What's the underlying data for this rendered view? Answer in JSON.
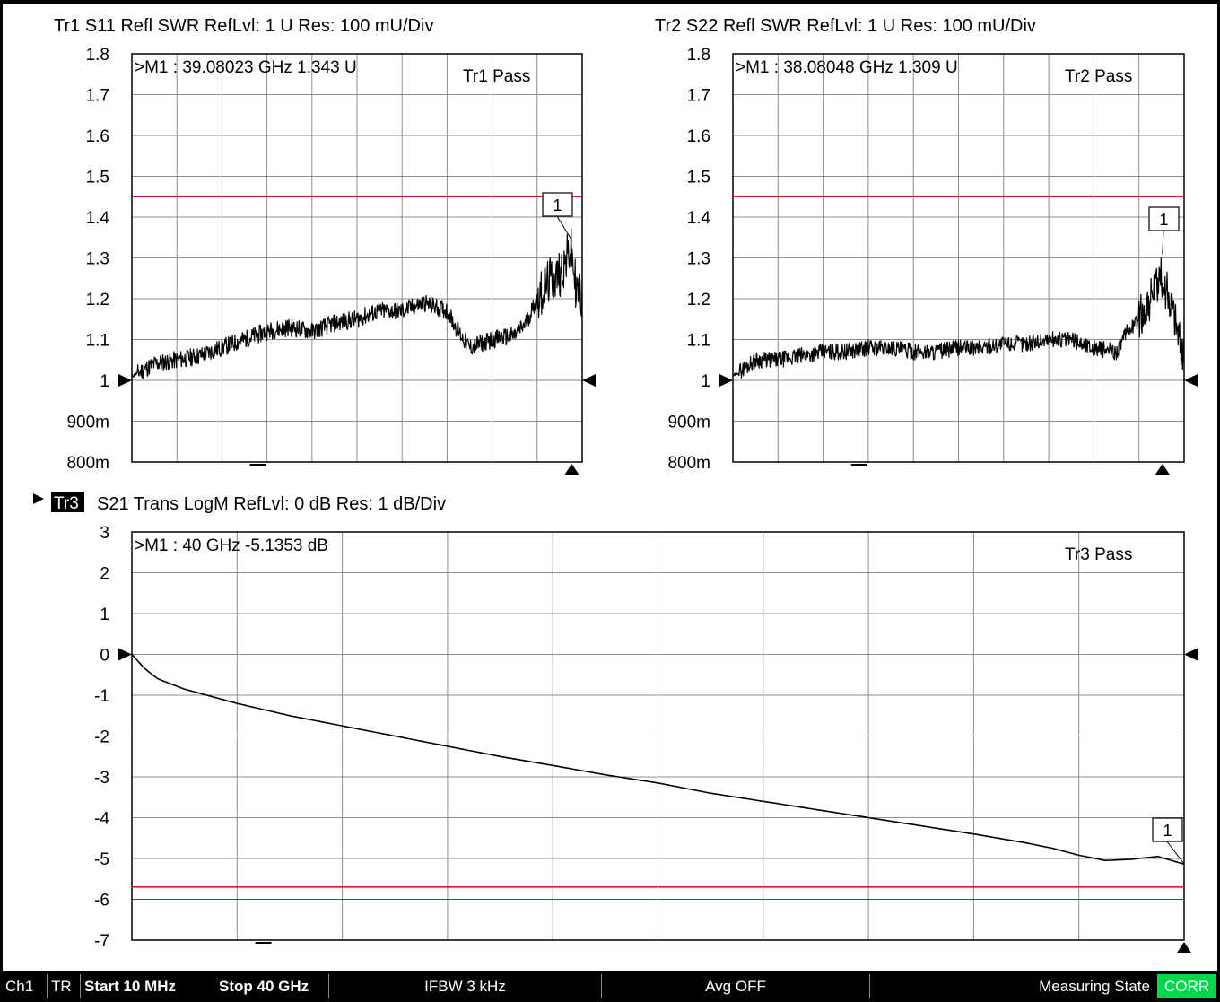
{
  "traces": [
    {
      "id": "Tr1",
      "header": "Tr1  S11 Refl SWR RefLvl: 1  U Res: 100 mU/Div",
      "marker_readout": ">M1 :  39.08023 GHz  1.343  U",
      "pass_label": "Tr1 Pass",
      "marker_label": "1",
      "y_ticks": [
        "1.8",
        "1.7",
        "1.6",
        "1.5",
        "1.4",
        "1.3",
        "1.2",
        "1.1",
        "1",
        "900m",
        "800m"
      ],
      "chart_data": {
        "type": "line",
        "xlim": [
          0.01,
          40
        ],
        "ylim": [
          0.8,
          1.8
        ],
        "limit_line": 1.45,
        "ref_level": 1,
        "marker": {
          "x": 39.08023,
          "y": 1.343
        },
        "series": [
          {
            "x": [
              0.01,
              2,
              4,
              6,
              8,
              10,
              12,
              14,
              16,
              18,
              20,
              22,
              24,
              26,
              28,
              29,
              30,
              32,
              34,
              35,
              36,
              37,
              38,
              39,
              39.5,
              40
            ],
            "y": [
              1.01,
              1.04,
              1.05,
              1.06,
              1.08,
              1.1,
              1.12,
              1.13,
              1.12,
              1.14,
              1.15,
              1.17,
              1.17,
              1.19,
              1.17,
              1.12,
              1.08,
              1.1,
              1.11,
              1.14,
              1.2,
              1.24,
              1.26,
              1.32,
              1.22,
              1.2
            ]
          }
        ]
      }
    },
    {
      "id": "Tr2",
      "header": "Tr2  S22 Refl SWR RefLvl: 1  U Res: 100 mU/Div",
      "marker_readout": ">M1 :  38.08048 GHz  1.309  U",
      "pass_label": "Tr2 Pass",
      "marker_label": "1",
      "y_ticks": [
        "1.8",
        "1.7",
        "1.6",
        "1.5",
        "1.4",
        "1.3",
        "1.2",
        "1.1",
        "1",
        "900m",
        "800m"
      ],
      "chart_data": {
        "type": "line",
        "xlim": [
          0.01,
          40
        ],
        "ylim": [
          0.8,
          1.8
        ],
        "limit_line": 1.45,
        "ref_level": 1,
        "marker": {
          "x": 38.08048,
          "y": 1.309
        },
        "series": [
          {
            "x": [
              0.01,
              2,
              4,
              6,
              8,
              10,
              12,
              14,
              16,
              18,
              20,
              22,
              24,
              26,
              28,
              30,
              32,
              34,
              35,
              36,
              37,
              38,
              39,
              40
            ],
            "y": [
              1.01,
              1.05,
              1.05,
              1.06,
              1.07,
              1.07,
              1.08,
              1.08,
              1.07,
              1.07,
              1.08,
              1.08,
              1.09,
              1.09,
              1.1,
              1.1,
              1.08,
              1.07,
              1.12,
              1.15,
              1.2,
              1.25,
              1.18,
              1.05
            ]
          }
        ]
      }
    },
    {
      "id": "Tr3",
      "header": "S21 Trans LogM RefLvl: 0  dB Res: 1  dB/Div",
      "marker_readout": ">M1 :  40 GHz  -5.1353  dB",
      "pass_label": "Tr3 Pass",
      "marker_label": "1",
      "y_ticks": [
        "3",
        "2",
        "1",
        "0",
        "-1",
        "-2",
        "-3",
        "-4",
        "-5",
        "-6",
        "-7"
      ],
      "chart_data": {
        "type": "line",
        "xlim": [
          0.01,
          40
        ],
        "ylim": [
          -7,
          3
        ],
        "limit_line": -5.7,
        "ref_level": 0,
        "marker": {
          "x": 40,
          "y": -5.1353
        },
        "series": [
          {
            "x": [
              0.01,
              0.5,
              1,
              2,
              4,
              6,
              8,
              10,
              12,
              14,
              16,
              18,
              20,
              22,
              24,
              26,
              28,
              30,
              32,
              34,
              35,
              36,
              37,
              38,
              39,
              40
            ],
            "y": [
              0,
              -0.35,
              -0.6,
              -0.85,
              -1.2,
              -1.5,
              -1.75,
              -2.0,
              -2.25,
              -2.5,
              -2.72,
              -2.95,
              -3.15,
              -3.4,
              -3.6,
              -3.8,
              -4.0,
              -4.2,
              -4.4,
              -4.62,
              -4.75,
              -4.92,
              -5.05,
              -5.02,
              -4.95,
              -5.14
            ]
          }
        ]
      }
    }
  ],
  "statusbar": {
    "channel": "Ch1",
    "mode": "TR",
    "start": "Start 10 MHz",
    "stop": "Stop 40 GHz",
    "ifbw": "IFBW 3 kHz",
    "avg": "Avg OFF",
    "state": "Measuring State",
    "corr": "CORR"
  },
  "colors": {
    "trace": "#000000",
    "limit": "#d42020",
    "grid": "#8c8c8c",
    "corr_badge": "#00d84a"
  }
}
